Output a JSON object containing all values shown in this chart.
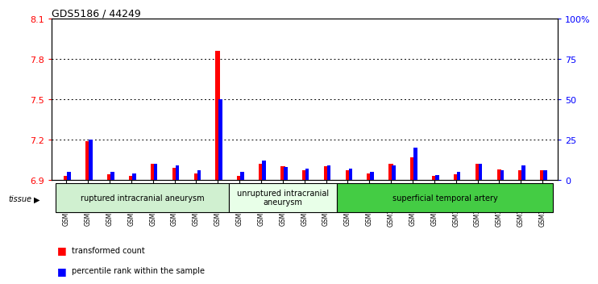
{
  "title": "GDS5186 / 44249",
  "samples": [
    "GSM1306885",
    "GSM1306886",
    "GSM1306887",
    "GSM1306888",
    "GSM1306889",
    "GSM1306890",
    "GSM1306891",
    "GSM1306892",
    "GSM1306893",
    "GSM1306894",
    "GSM1306895",
    "GSM1306896",
    "GSM1306897",
    "GSM1306898",
    "GSM1306899",
    "GSM1306900",
    "GSM1306901",
    "GSM1306902",
    "GSM1306903",
    "GSM1306904",
    "GSM1306905",
    "GSM1306906",
    "GSM1306907"
  ],
  "red_values": [
    6.93,
    7.19,
    6.94,
    6.93,
    7.02,
    6.99,
    6.95,
    7.86,
    6.93,
    7.02,
    7.0,
    6.97,
    7.0,
    6.97,
    6.95,
    7.02,
    7.07,
    6.93,
    6.94,
    7.02,
    6.98,
    6.97,
    6.97
  ],
  "blue_values": [
    5,
    25,
    5,
    4,
    10,
    9,
    6,
    50,
    5,
    12,
    8,
    7,
    9,
    7,
    5,
    9,
    20,
    3,
    5,
    10,
    6,
    9,
    6
  ],
  "y_min": 6.9,
  "y_max": 8.1,
  "y_ticks": [
    6.9,
    7.2,
    7.5,
    7.8,
    8.1
  ],
  "y2_ticks": [
    0,
    25,
    50,
    75,
    100
  ],
  "groups": [
    {
      "label": "ruptured intracranial aneurysm",
      "start": 0,
      "end": 7,
      "color": "#d0f0d0"
    },
    {
      "label": "unruptured intracranial\naneurysm",
      "start": 8,
      "end": 12,
      "color": "#e8ffe8"
    },
    {
      "label": "superficial temporal artery",
      "start": 13,
      "end": 22,
      "color": "#44cc44"
    }
  ],
  "tissue_label": "tissue",
  "legend_red": "transformed count",
  "legend_blue": "percentile rank within the sample",
  "bar_width": 0.5,
  "background_color": "#d8d8d8",
  "plot_bg": "#ffffff"
}
